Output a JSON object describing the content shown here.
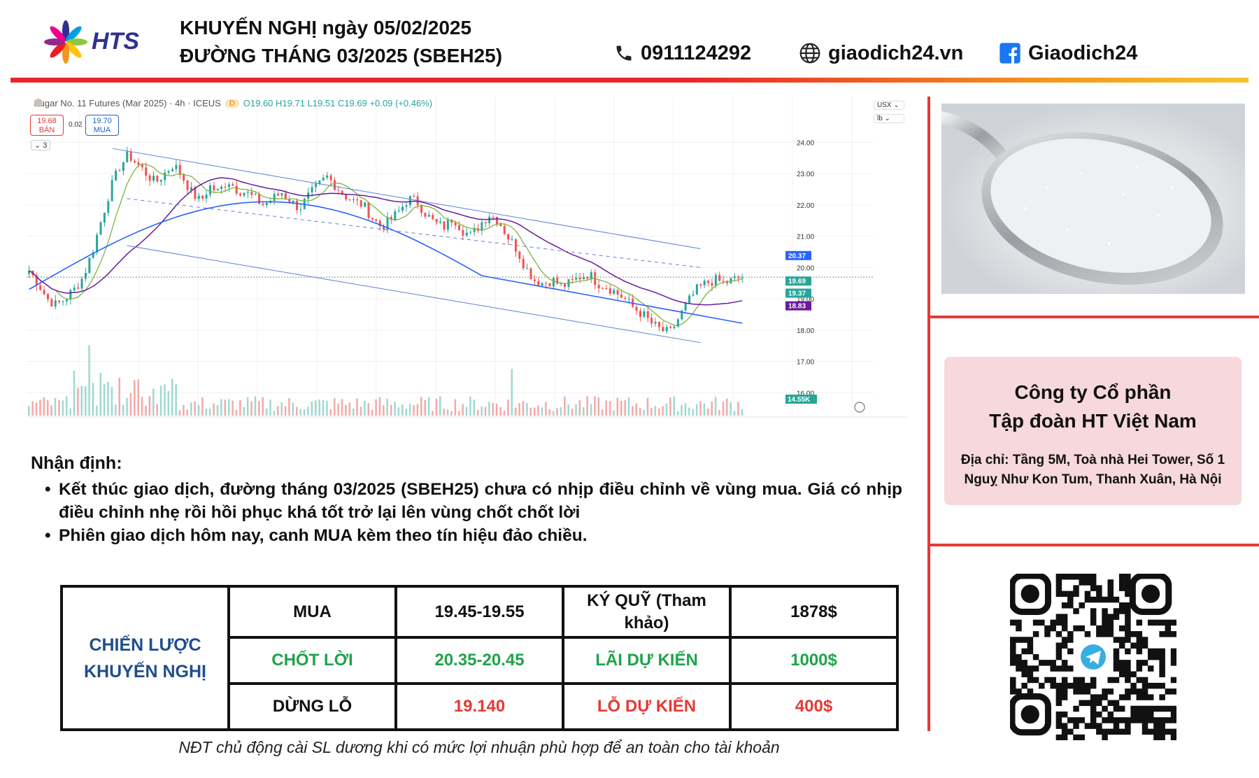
{
  "header": {
    "brand": "HTS",
    "title_line1": "KHUYẾN NGHỊ ngày 05/02/2025",
    "title_line2": "ĐƯỜNG THÁNG 03/2025 (SBEH25)",
    "phone": "0911124292",
    "website": "giaodich24.vn",
    "facebook": "Giaodich24",
    "icons": [
      "phone-icon",
      "globe-icon",
      "facebook-icon"
    ]
  },
  "chart_header": {
    "symbol": "Sugar No. 11 Futures (Mar 2025) · 4h · ICEUS",
    "badge": "D",
    "ohlc": "O19.60 H19.71 L19.51 C19.69 +0.09 (+0.46%)",
    "sell_price": "19.68",
    "sell_label": "BÁN",
    "buy_price": "19.70",
    "buy_label": "MUA",
    "spread": "0.02",
    "collapse": "⌄ 3",
    "currency": "USX ⌄",
    "unit": "lb ⌄"
  },
  "chart_data": {
    "type": "candlestick",
    "timeframe": "4h",
    "y_ticks": [
      16.0,
      17.0,
      18.0,
      19.0,
      20.0,
      21.0,
      22.0,
      23.0,
      24.0
    ],
    "ylim": [
      15.0,
      24.0
    ],
    "close_path": [
      19.9,
      19.5,
      19.0,
      18.8,
      19.0,
      19.3,
      19.7,
      20.5,
      21.5,
      22.5,
      23.2,
      23.6,
      23.3,
      23.0,
      22.7,
      23.0,
      23.3,
      22.9,
      22.4,
      22.1,
      22.6,
      22.4,
      22.8,
      22.5,
      22.4,
      22.2,
      22.0,
      22.2,
      22.4,
      22.1,
      21.9,
      22.3,
      22.6,
      22.9,
      22.6,
      22.3,
      22.1,
      22.0,
      21.6,
      21.3,
      21.5,
      21.8,
      22.2,
      22.1,
      21.7,
      21.4,
      21.3,
      21.6,
      21.2,
      21.0,
      21.4,
      21.7,
      21.5,
      21.0,
      20.6,
      20.0,
      19.6,
      19.5,
      19.6,
      19.4,
      19.5,
      19.7,
      19.8,
      19.5,
      19.4,
      19.2,
      19.0,
      18.7,
      18.5,
      18.2,
      18.0,
      17.9,
      18.4,
      18.9,
      19.3,
      19.5,
      19.6,
      19.5,
      19.6,
      19.7
    ],
    "price_labels": [
      {
        "value": "20.37",
        "color": "#2962ff"
      },
      {
        "value": "19.69",
        "color": "#26a69a"
      },
      {
        "value": "19.37",
        "color": "#26a69a"
      },
      {
        "value": "18.83",
        "color": "#6a1b9a"
      }
    ],
    "volume_label": "14.55K",
    "trendlines": {
      "upper": [
        [
          23.8,
          0.12
        ],
        [
          20.6,
          0.94
        ]
      ],
      "middle": [
        [
          22.2,
          0.14
        ],
        [
          20.0,
          0.94
        ]
      ],
      "lower": [
        [
          20.7,
          0.14
        ],
        [
          17.6,
          0.94
        ]
      ]
    }
  },
  "analysis": {
    "title": "Nhận định:",
    "points": [
      "Kết thúc giao dịch, đường tháng 03/2025 (SBEH25) chưa có nhịp điều chỉnh về vùng mua. Giá có nhịp điều chỉnh nhẹ rồi hồi phục khá tốt trở lại lên vùng chốt chốt lời",
      "Phiên giao dịch hôm nay, canh MUA kèm theo tín hiệu đảo chiều."
    ]
  },
  "strategy": {
    "heading": "CHIẾN LƯỢC KHUYẾN NGHỊ",
    "buy_label": "MUA",
    "buy_range": "19.45-19.55",
    "margin_label": "KÝ QUỸ (Tham khảo)",
    "margin_value": "1878$",
    "tp_label": "CHỐT LỜI",
    "tp_range": "20.35-20.45",
    "profit_label": "LÃI DỰ KIẾN",
    "profit_value": "1000$",
    "sl_label": "DỪNG LỖ",
    "sl_value": "19.140",
    "loss_label": "LỖ DỰ KIẾN",
    "loss_value": "400$",
    "colors": {
      "heading": "#1f4e8c",
      "profit": "#1fa34a",
      "loss": "#e53935"
    }
  },
  "note": "NĐT chủ động cài SL dương khi có mức lợi nhuận phù hợp để an toàn cho tài khoản",
  "company": {
    "name_line1": "Công ty Cổ phần",
    "name_line2": "Tập đoàn HT Việt Nam",
    "address": "Địa chỉ: Tầng 5M, Toà nhà Hei Tower, Số 1 Nguỵ Như Kon Tum, Thanh Xuân, Hà Nội"
  },
  "images": {
    "sugar": "sugar-spoon-photo",
    "qr": "telegram-qr-code"
  }
}
